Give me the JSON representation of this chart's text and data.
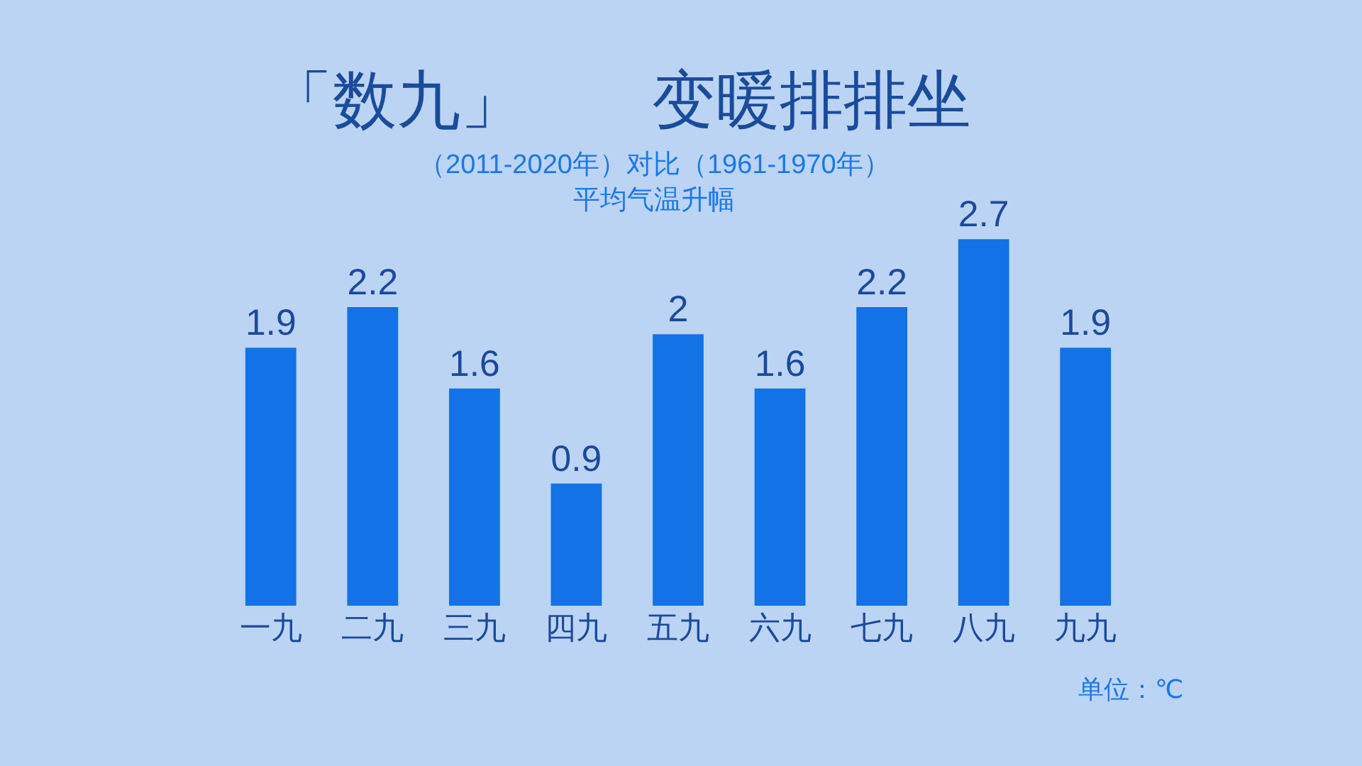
{
  "chart_data": {
    "type": "bar",
    "title": "「数九」　　变暖排排坐",
    "subtitle": "（2011-2020年）对比（1961-1970年）",
    "categories": [
      "一九",
      "二九",
      "三九",
      "四九",
      "五九",
      "六九",
      "七九",
      "八九",
      "九九"
    ],
    "values": [
      1.9,
      2.2,
      1.6,
      0.9,
      2,
      1.6,
      2.2,
      2.7,
      1.9
    ],
    "color": "#1272e6",
    "data_labels": true,
    "tick_labels": "x",
    "grid": false,
    "legend": false,
    "annotations": [
      "平均气温升幅",
      "单位：℃"
    ]
  }
}
